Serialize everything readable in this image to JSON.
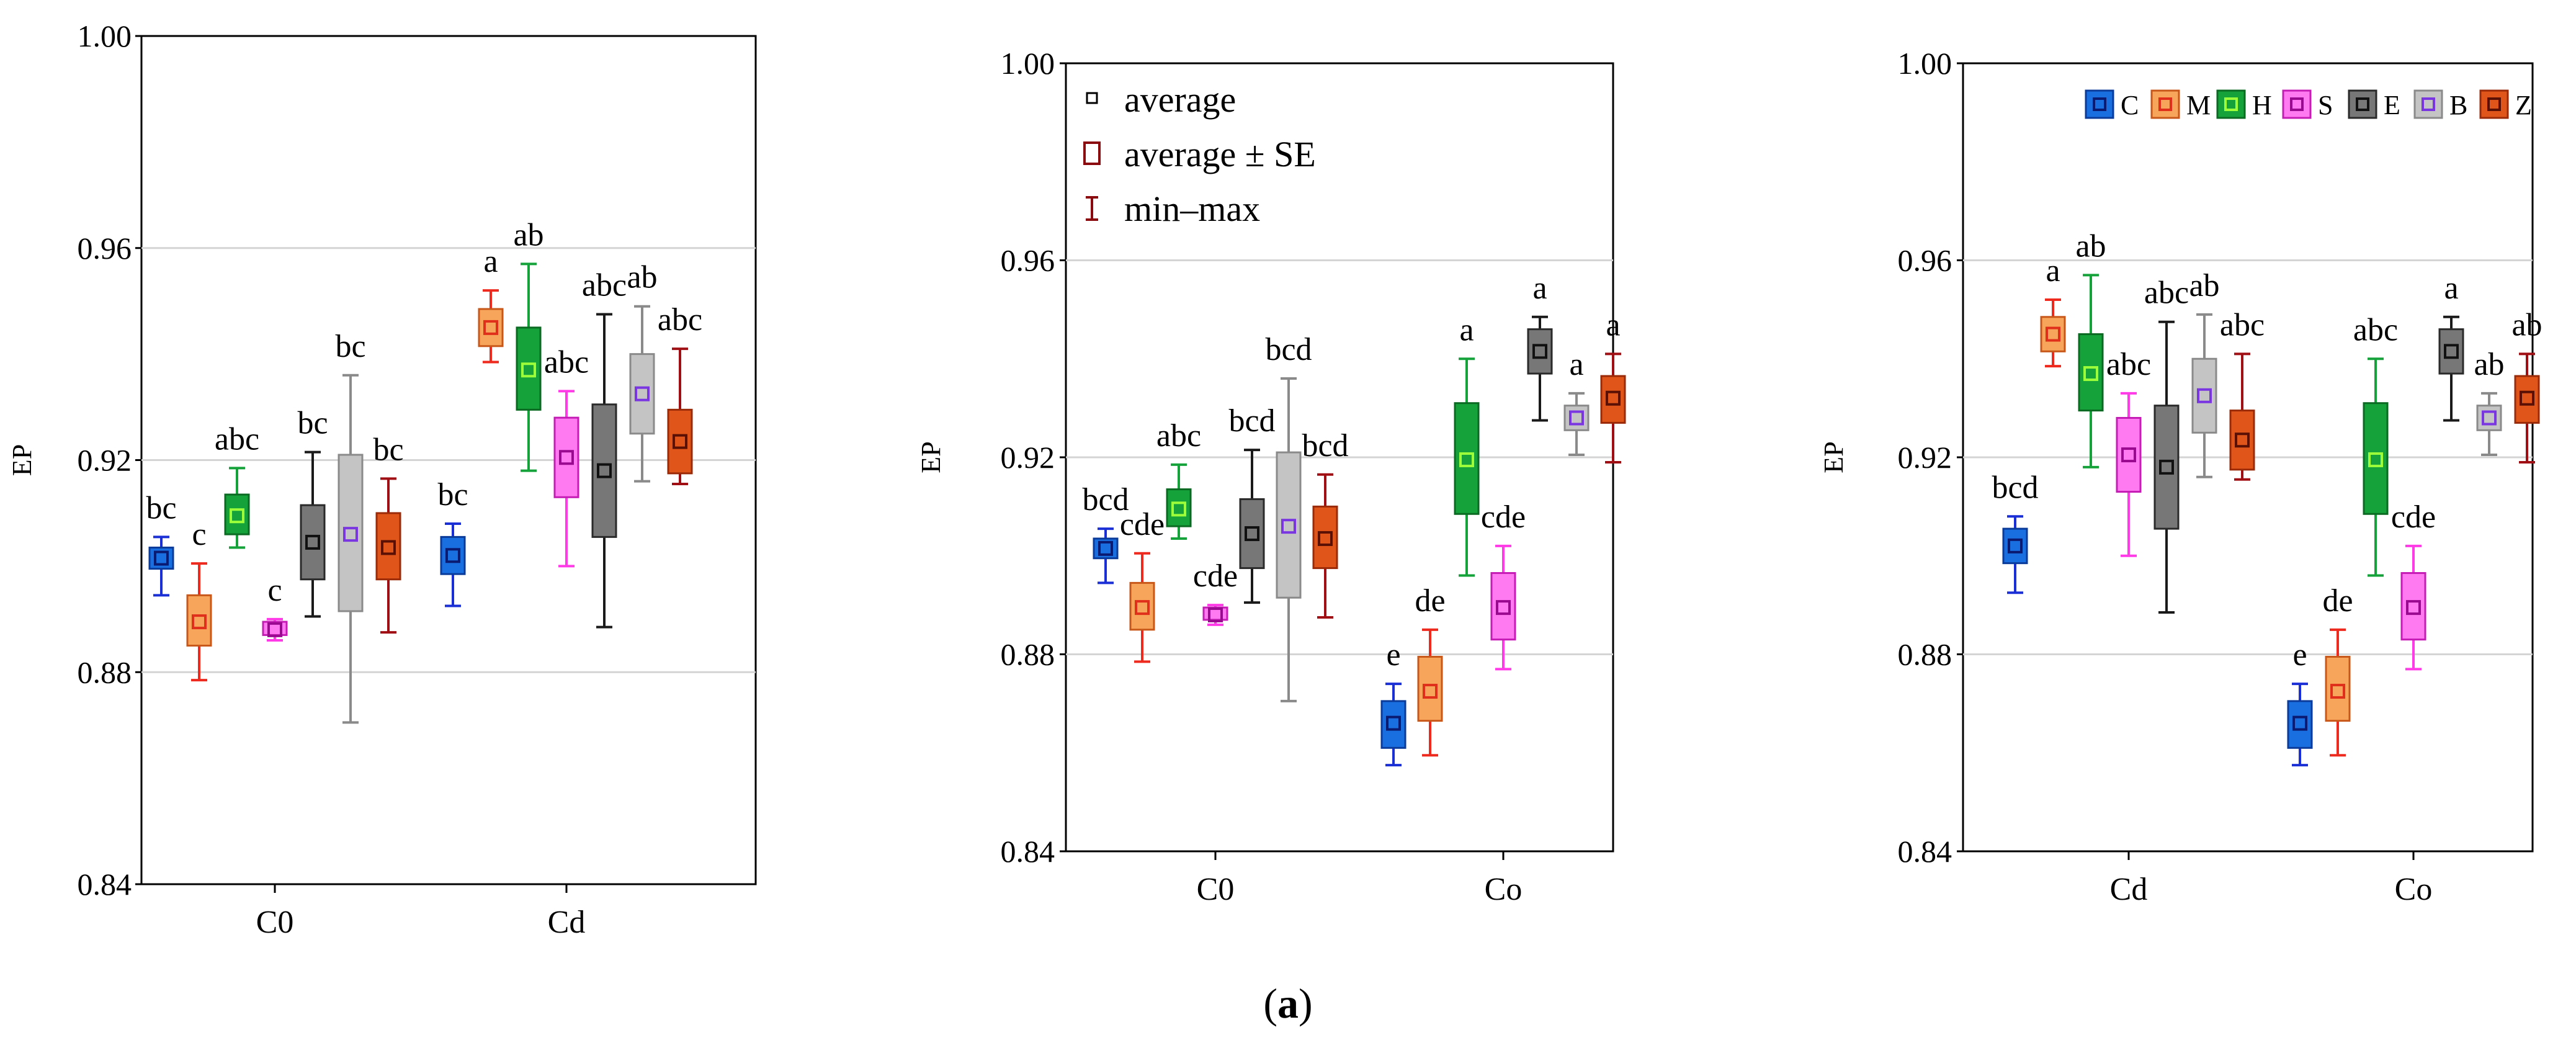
{
  "figure_label": {
    "open": "(",
    "letter": "a",
    "close": ")"
  },
  "chart_data": [
    {
      "type": "box",
      "title": "",
      "xlabel": "",
      "ylabel": "EP",
      "ylim": [
        0.84,
        1.0
      ],
      "yticks": [
        "0.84",
        "0.88",
        "0.92",
        "0.96",
        "1.00"
      ],
      "grid": true,
      "categories": [
        "C0",
        "Cd"
      ],
      "series_order": [
        "C",
        "M",
        "H",
        "S",
        "E",
        "B",
        "Z"
      ],
      "groups": [
        {
          "category": "C0",
          "boxes": [
            {
              "series": "C",
              "mean": 0.9015,
              "se_low": 0.8995,
              "se_high": 0.9035,
              "min": 0.8945,
              "max": 0.9055,
              "label": "bc"
            },
            {
              "series": "M",
              "mean": 0.8895,
              "se_low": 0.885,
              "se_high": 0.8945,
              "min": 0.8785,
              "max": 0.9005,
              "label": "c"
            },
            {
              "series": "H",
              "mean": 0.9095,
              "se_low": 0.906,
              "se_high": 0.9135,
              "min": 0.9035,
              "max": 0.9185,
              "label": "abc"
            },
            {
              "series": "S",
              "mean": 0.888,
              "se_low": 0.887,
              "se_high": 0.8895,
              "min": 0.886,
              "max": 0.89,
              "label": "c"
            },
            {
              "series": "E",
              "mean": 0.9045,
              "se_low": 0.8975,
              "se_high": 0.9115,
              "min": 0.8905,
              "max": 0.9215,
              "label": "bc"
            },
            {
              "series": "B",
              "mean": 0.906,
              "se_low": 0.8915,
              "se_high": 0.921,
              "min": 0.8705,
              "max": 0.936,
              "label": "bc"
            },
            {
              "series": "Z",
              "mean": 0.9035,
              "se_low": 0.8975,
              "se_high": 0.91,
              "min": 0.8875,
              "max": 0.9165,
              "label": "bc"
            }
          ]
        },
        {
          "category": "Cd",
          "boxes": [
            {
              "series": "C",
              "mean": 0.902,
              "se_low": 0.8985,
              "se_high": 0.9055,
              "min": 0.8925,
              "max": 0.908,
              "label": "bc"
            },
            {
              "series": "M",
              "mean": 0.945,
              "se_low": 0.9415,
              "se_high": 0.9485,
              "min": 0.9385,
              "max": 0.952,
              "label": "a"
            },
            {
              "series": "H",
              "mean": 0.937,
              "se_low": 0.9295,
              "se_high": 0.945,
              "min": 0.918,
              "max": 0.957,
              "label": "ab"
            },
            {
              "series": "S",
              "mean": 0.9205,
              "se_low": 0.913,
              "se_high": 0.928,
              "min": 0.9,
              "max": 0.933,
              "label": "abc"
            },
            {
              "series": "E",
              "mean": 0.918,
              "se_low": 0.9055,
              "se_high": 0.9305,
              "min": 0.8885,
              "max": 0.9475,
              "label": "abc"
            },
            {
              "series": "B",
              "mean": 0.9325,
              "se_low": 0.925,
              "se_high": 0.94,
              "min": 0.916,
              "max": 0.949,
              "label": "ab"
            },
            {
              "series": "Z",
              "mean": 0.9235,
              "se_low": 0.9175,
              "se_high": 0.9295,
              "min": 0.9155,
              "max": 0.941,
              "label": "abc"
            }
          ]
        }
      ]
    },
    {
      "type": "box",
      "title": "",
      "xlabel": "",
      "ylabel": "EP",
      "ylim": [
        0.84,
        1.0
      ],
      "yticks": [
        "0.84",
        "0.88",
        "0.92",
        "0.96",
        "1.00"
      ],
      "grid": true,
      "categories": [
        "C0",
        "Co"
      ],
      "series_order": [
        "C",
        "M",
        "H",
        "S",
        "E",
        "B",
        "Z"
      ],
      "legend": {
        "position": "top-left",
        "entries": [
          "average",
          "average ± SE",
          "min–max"
        ]
      },
      "groups": [
        {
          "category": "C0",
          "boxes": [
            {
              "series": "C",
              "mean": 0.9015,
              "se_low": 0.8995,
              "se_high": 0.9035,
              "min": 0.8945,
              "max": 0.9055,
              "label": "bcd"
            },
            {
              "series": "M",
              "mean": 0.8895,
              "se_low": 0.885,
              "se_high": 0.8945,
              "min": 0.8785,
              "max": 0.9005,
              "label": "cde"
            },
            {
              "series": "H",
              "mean": 0.9095,
              "se_low": 0.906,
              "se_high": 0.9135,
              "min": 0.9035,
              "max": 0.9185,
              "label": "abc"
            },
            {
              "series": "S",
              "mean": 0.888,
              "se_low": 0.887,
              "se_high": 0.8895,
              "min": 0.886,
              "max": 0.89,
              "label": "cde"
            },
            {
              "series": "E",
              "mean": 0.9045,
              "se_low": 0.8975,
              "se_high": 0.9115,
              "min": 0.8905,
              "max": 0.9215,
              "label": "bcd"
            },
            {
              "series": "B",
              "mean": 0.906,
              "se_low": 0.8915,
              "se_high": 0.921,
              "min": 0.8705,
              "max": 0.936,
              "label": "bcd"
            },
            {
              "series": "Z",
              "mean": 0.9035,
              "se_low": 0.8975,
              "se_high": 0.91,
              "min": 0.8875,
              "max": 0.9165,
              "label": "bcd"
            }
          ]
        },
        {
          "category": "Co",
          "boxes": [
            {
              "series": "C",
              "mean": 0.866,
              "se_low": 0.861,
              "se_high": 0.8705,
              "min": 0.8575,
              "max": 0.874,
              "label": "e"
            },
            {
              "series": "M",
              "mean": 0.8725,
              "se_low": 0.8665,
              "se_high": 0.8795,
              "min": 0.8595,
              "max": 0.885,
              "label": "de"
            },
            {
              "series": "H",
              "mean": 0.9195,
              "se_low": 0.9085,
              "se_high": 0.931,
              "min": 0.896,
              "max": 0.94,
              "label": "a"
            },
            {
              "series": "S",
              "mean": 0.8895,
              "se_low": 0.883,
              "se_high": 0.8965,
              "min": 0.877,
              "max": 0.902,
              "label": "cde"
            },
            {
              "series": "E",
              "mean": 0.9415,
              "se_low": 0.937,
              "se_high": 0.946,
              "min": 0.9275,
              "max": 0.9485,
              "label": "a"
            },
            {
              "series": "B",
              "mean": 0.928,
              "se_low": 0.9255,
              "se_high": 0.9305,
              "min": 0.9205,
              "max": 0.933,
              "label": "a"
            },
            {
              "series": "Z",
              "mean": 0.932,
              "se_low": 0.927,
              "se_high": 0.9365,
              "min": 0.919,
              "max": 0.941,
              "label": "a"
            }
          ]
        }
      ]
    },
    {
      "type": "box",
      "title": "",
      "xlabel": "",
      "ylabel": "EP",
      "ylim": [
        0.84,
        1.0
      ],
      "yticks": [
        "0.84",
        "0.88",
        "0.92",
        "0.96",
        "1.00"
      ],
      "grid": true,
      "categories": [
        "Cd",
        "Co"
      ],
      "series_order": [
        "C",
        "M",
        "H",
        "S",
        "E",
        "B",
        "Z"
      ],
      "legend": {
        "position": "top",
        "entries": [
          "C",
          "M",
          "H",
          "S",
          "E",
          "B",
          "Z"
        ]
      },
      "groups": [
        {
          "category": "Cd",
          "boxes": [
            {
              "series": "C",
              "mean": 0.902,
              "se_low": 0.8985,
              "se_high": 0.9055,
              "min": 0.8925,
              "max": 0.908,
              "label": "bcd"
            },
            {
              "series": "M",
              "mean": 0.945,
              "se_low": 0.9415,
              "se_high": 0.9485,
              "min": 0.9385,
              "max": 0.952,
              "label": "a"
            },
            {
              "series": "H",
              "mean": 0.937,
              "se_low": 0.9295,
              "se_high": 0.945,
              "min": 0.918,
              "max": 0.957,
              "label": "ab"
            },
            {
              "series": "S",
              "mean": 0.9205,
              "se_low": 0.913,
              "se_high": 0.928,
              "min": 0.9,
              "max": 0.933,
              "label": "abc"
            },
            {
              "series": "E",
              "mean": 0.918,
              "se_low": 0.9055,
              "se_high": 0.9305,
              "min": 0.8885,
              "max": 0.9475,
              "label": "abc"
            },
            {
              "series": "B",
              "mean": 0.9325,
              "se_low": 0.925,
              "se_high": 0.94,
              "min": 0.916,
              "max": 0.949,
              "label": "ab"
            },
            {
              "series": "Z",
              "mean": 0.9235,
              "se_low": 0.9175,
              "se_high": 0.9295,
              "min": 0.9155,
              "max": 0.941,
              "label": "abc"
            }
          ]
        },
        {
          "category": "Co",
          "boxes": [
            {
              "series": "C",
              "mean": 0.866,
              "se_low": 0.861,
              "se_high": 0.8705,
              "min": 0.8575,
              "max": 0.874,
              "label": "e"
            },
            {
              "series": "M",
              "mean": 0.8725,
              "se_low": 0.8665,
              "se_high": 0.8795,
              "min": 0.8595,
              "max": 0.885,
              "label": "de"
            },
            {
              "series": "H",
              "mean": 0.9195,
              "se_low": 0.9085,
              "se_high": 0.931,
              "min": 0.896,
              "max": 0.94,
              "label": "abc"
            },
            {
              "series": "S",
              "mean": 0.8895,
              "se_low": 0.883,
              "se_high": 0.8965,
              "min": 0.877,
              "max": 0.902,
              "label": "cde"
            },
            {
              "series": "E",
              "mean": 0.9415,
              "se_low": 0.937,
              "se_high": 0.946,
              "min": 0.9275,
              "max": 0.9485,
              "label": "a"
            },
            {
              "series": "B",
              "mean": 0.928,
              "se_low": 0.9255,
              "se_high": 0.9305,
              "min": 0.9205,
              "max": 0.933,
              "label": "ab"
            },
            {
              "series": "Z",
              "mean": 0.932,
              "se_low": 0.927,
              "se_high": 0.9365,
              "min": 0.919,
              "max": 0.941,
              "label": "ab"
            }
          ]
        }
      ]
    }
  ],
  "series_colors": {
    "C": {
      "fill": "#1a6fe0",
      "edge": "#0a3b9a",
      "whisker": "#1b2fd6",
      "mean": "#0a1a70"
    },
    "M": {
      "fill": "#f6a55a",
      "edge": "#c8581a",
      "whisker": "#ee2a1e",
      "mean": "#e0301c"
    },
    "H": {
      "fill": "#16a23a",
      "edge": "#0b6a22",
      "whisker": "#16a23a",
      "mean": "#9cff3a"
    },
    "S": {
      "fill": "#ff7af0",
      "edge": "#c41cb4",
      "whisker": "#ff3ae6",
      "mean": "#9a0a90"
    },
    "E": {
      "fill": "#777777",
      "edge": "#2a2a2a",
      "whisker": "#1a1a1a",
      "mean": "#111111"
    },
    "B": {
      "fill": "#c4c4c4",
      "edge": "#8a8a8a",
      "whisker": "#8a8a8a",
      "mean": "#7a36e0"
    },
    "Z": {
      "fill": "#e0561a",
      "edge": "#9a2a08",
      "whisker": "#a00f14",
      "mean": "#5a1004"
    }
  }
}
